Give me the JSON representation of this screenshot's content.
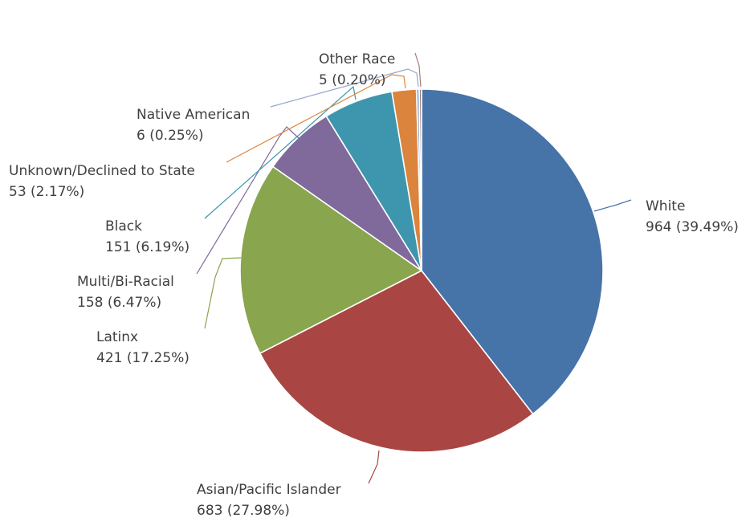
{
  "chart_data": {
    "type": "pie",
    "title": "",
    "start_angle_deg": 0,
    "direction": "clockwise",
    "slices": [
      {
        "label": "White",
        "value": 964,
        "percent": "39.49%",
        "color": "#4673a8"
      },
      {
        "label": "Asian/Pacific Islander",
        "value": 683,
        "percent": "27.98%",
        "color": "#a94644"
      },
      {
        "label": "Latinx",
        "value": 421,
        "percent": "17.25%",
        "color": "#89a54e"
      },
      {
        "label": "Multi/Bi-Racial",
        "value": 158,
        "percent": "6.47%",
        "color": "#80699b"
      },
      {
        "label": "Black",
        "value": 151,
        "percent": "6.19%",
        "color": "#3d96ae"
      },
      {
        "label": "Unknown/Declined to State",
        "value": 53,
        "percent": "2.17%",
        "color": "#db843d"
      },
      {
        "label": "Native American",
        "value": 6,
        "percent": "0.25%",
        "color": "#92a8cd"
      },
      {
        "label": "Other Race",
        "value": 5,
        "percent": "0.20%",
        "color": "#a47d7c"
      }
    ]
  }
}
